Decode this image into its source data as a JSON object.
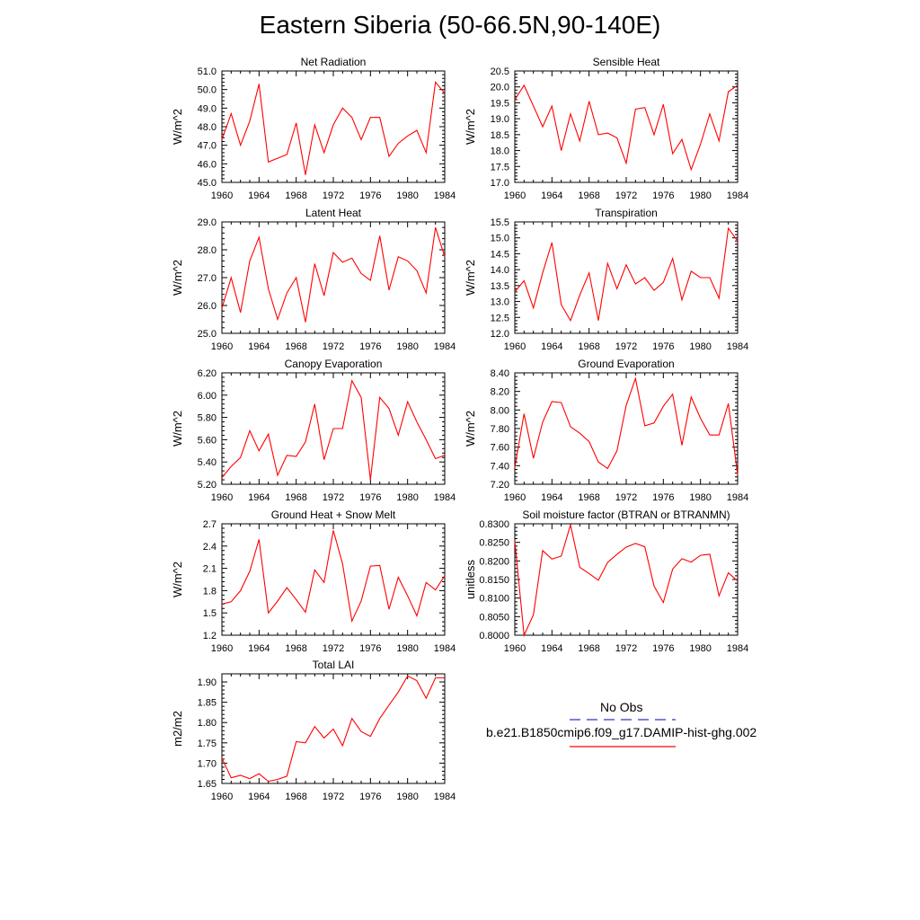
{
  "title": "Eastern Siberia (50-66.5N,90-140E)",
  "legend": {
    "entries": [
      {
        "label": "No Obs",
        "color": "#3333cc",
        "style": "dashed"
      },
      {
        "label": "b.e21.B1850cmip6.f09_g17.DAMIP-hist-ghg.002",
        "color": "#ff0000",
        "style": "solid"
      }
    ]
  },
  "chart_data": [
    {
      "type": "line",
      "title": "Net Radiation",
      "ylabel": "W/m^2",
      "xlim": [
        1960,
        1984
      ],
      "xticks": [
        "1960",
        "1964",
        "1968",
        "1972",
        "1976",
        "1980",
        "1984"
      ],
      "ylim": [
        45.0,
        51.0
      ],
      "yticks": [
        "45.0",
        "46.0",
        "47.0",
        "48.0",
        "49.0",
        "50.0",
        "51.0"
      ],
      "color": "#ff0000",
      "x": [
        1960,
        1961,
        1962,
        1963,
        1964,
        1965,
        1966,
        1967,
        1968,
        1969,
        1970,
        1971,
        1972,
        1973,
        1974,
        1975,
        1976,
        1977,
        1978,
        1979,
        1980,
        1981,
        1982,
        1983,
        1984
      ],
      "values": [
        47.3,
        48.7,
        47.0,
        48.3,
        50.3,
        46.1,
        46.3,
        46.5,
        48.2,
        45.4,
        48.1,
        46.6,
        48.1,
        49.0,
        48.5,
        47.3,
        48.5,
        48.5,
        46.4,
        47.1,
        47.5,
        47.8,
        46.6,
        50.4,
        49.8
      ]
    },
    {
      "type": "line",
      "title": "Sensible Heat",
      "ylabel": "W/m^2",
      "xlim": [
        1960,
        1984
      ],
      "xticks": [
        "1960",
        "1964",
        "1968",
        "1972",
        "1976",
        "1980",
        "1984"
      ],
      "ylim": [
        17.0,
        20.5
      ],
      "yticks": [
        "17.0",
        "17.5",
        "18.0",
        "18.5",
        "19.0",
        "19.5",
        "20.0",
        "20.5"
      ],
      "color": "#ff0000",
      "x": [
        1960,
        1961,
        1962,
        1963,
        1964,
        1965,
        1966,
        1967,
        1968,
        1969,
        1970,
        1971,
        1972,
        1973,
        1974,
        1975,
        1976,
        1977,
        1978,
        1979,
        1980,
        1981,
        1982,
        1983,
        1984
      ],
      "values": [
        19.6,
        20.05,
        19.4,
        18.75,
        19.4,
        18.0,
        19.15,
        18.3,
        19.55,
        18.5,
        18.55,
        18.4,
        17.6,
        19.3,
        19.35,
        18.5,
        19.45,
        17.9,
        18.35,
        17.4,
        18.2,
        19.15,
        18.3,
        19.85,
        20.05
      ]
    },
    {
      "type": "line",
      "title": "Latent Heat",
      "ylabel": "W/m^2",
      "xlim": [
        1960,
        1984
      ],
      "xticks": [
        "1960",
        "1964",
        "1968",
        "1972",
        "1976",
        "1980",
        "1984"
      ],
      "ylim": [
        25.0,
        29.0
      ],
      "yticks": [
        "25.0",
        "26.0",
        "27.0",
        "28.0",
        "29.0"
      ],
      "color": "#ff0000",
      "x": [
        1960,
        1961,
        1962,
        1963,
        1964,
        1965,
        1966,
        1967,
        1968,
        1969,
        1970,
        1971,
        1972,
        1973,
        1974,
        1975,
        1976,
        1977,
        1978,
        1979,
        1980,
        1981,
        1982,
        1983,
        1984
      ],
      "values": [
        25.9,
        27.0,
        25.75,
        27.6,
        28.45,
        26.6,
        25.5,
        26.45,
        27.0,
        25.4,
        27.5,
        26.35,
        27.9,
        27.55,
        27.7,
        27.15,
        26.9,
        28.5,
        26.55,
        27.75,
        27.6,
        27.25,
        26.45,
        28.8,
        27.75
      ]
    },
    {
      "type": "line",
      "title": "Transpiration",
      "ylabel": "W/m^2",
      "xlim": [
        1960,
        1984
      ],
      "xticks": [
        "1960",
        "1964",
        "1968",
        "1972",
        "1976",
        "1980",
        "1984"
      ],
      "ylim": [
        12.0,
        15.5
      ],
      "yticks": [
        "12.0",
        "12.5",
        "13.0",
        "13.5",
        "14.0",
        "14.5",
        "15.0",
        "15.5"
      ],
      "color": "#ff0000",
      "x": [
        1960,
        1961,
        1962,
        1963,
        1964,
        1965,
        1966,
        1967,
        1968,
        1969,
        1970,
        1971,
        1972,
        1973,
        1974,
        1975,
        1976,
        1977,
        1978,
        1979,
        1980,
        1981,
        1982,
        1983,
        1984
      ],
      "values": [
        13.3,
        13.65,
        12.8,
        13.9,
        14.85,
        12.9,
        12.4,
        13.2,
        13.9,
        12.4,
        14.2,
        13.4,
        14.15,
        13.55,
        13.75,
        13.35,
        13.6,
        14.35,
        13.05,
        13.95,
        13.75,
        13.75,
        13.1,
        15.3,
        14.9
      ]
    },
    {
      "type": "line",
      "title": "Canopy Evaporation",
      "ylabel": "W/m^2",
      "xlim": [
        1960,
        1984
      ],
      "xticks": [
        "1960",
        "1964",
        "1968",
        "1972",
        "1976",
        "1980",
        "1984"
      ],
      "ylim": [
        5.2,
        6.2
      ],
      "yticks": [
        "5.20",
        "5.40",
        "5.60",
        "5.80",
        "6.00",
        "6.20"
      ],
      "color": "#ff0000",
      "x": [
        1960,
        1961,
        1962,
        1963,
        1964,
        1965,
        1966,
        1967,
        1968,
        1969,
        1970,
        1971,
        1972,
        1973,
        1974,
        1975,
        1976,
        1977,
        1978,
        1979,
        1980,
        1981,
        1982,
        1983,
        1984
      ],
      "values": [
        5.26,
        5.36,
        5.44,
        5.68,
        5.5,
        5.65,
        5.28,
        5.46,
        5.45,
        5.58,
        5.92,
        5.42,
        5.7,
        5.7,
        6.13,
        5.98,
        5.24,
        5.98,
        5.88,
        5.64,
        5.94,
        5.76,
        5.6,
        5.43,
        5.46
      ]
    },
    {
      "type": "line",
      "title": "Ground Evaporation",
      "ylabel": "W/m^2",
      "xlim": [
        1960,
        1984
      ],
      "xticks": [
        "1960",
        "1964",
        "1968",
        "1972",
        "1976",
        "1980",
        "1984"
      ],
      "ylim": [
        7.2,
        8.4
      ],
      "yticks": [
        "7.20",
        "7.40",
        "7.60",
        "7.80",
        "8.00",
        "8.20",
        "8.40"
      ],
      "color": "#ff0000",
      "x": [
        1960,
        1961,
        1962,
        1963,
        1964,
        1965,
        1966,
        1967,
        1968,
        1969,
        1970,
        1971,
        1972,
        1973,
        1974,
        1975,
        1976,
        1977,
        1978,
        1979,
        1980,
        1981,
        1982,
        1983,
        1984
      ],
      "values": [
        7.38,
        7.96,
        7.48,
        7.87,
        8.09,
        8.08,
        7.82,
        7.75,
        7.66,
        7.44,
        7.37,
        7.56,
        8.05,
        8.34,
        7.83,
        7.86,
        8.04,
        8.17,
        7.62,
        8.14,
        7.91,
        7.73,
        7.73,
        8.07,
        7.3
      ]
    },
    {
      "type": "line",
      "title": "Ground Heat + Snow Melt",
      "ylabel": "W/m^2",
      "xlim": [
        1960,
        1984
      ],
      "xticks": [
        "1960",
        "1964",
        "1968",
        "1972",
        "1976",
        "1980",
        "1984"
      ],
      "ylim": [
        1.2,
        2.7
      ],
      "yticks": [
        "1.2",
        "1.5",
        "1.8",
        "2.1",
        "2.4",
        "2.7"
      ],
      "color": "#ff0000",
      "x": [
        1960,
        1961,
        1962,
        1963,
        1964,
        1965,
        1966,
        1967,
        1968,
        1969,
        1970,
        1971,
        1972,
        1973,
        1974,
        1975,
        1976,
        1977,
        1978,
        1979,
        1980,
        1981,
        1982,
        1983,
        1984
      ],
      "values": [
        1.62,
        1.65,
        1.8,
        2.06,
        2.49,
        1.5,
        1.66,
        1.84,
        1.68,
        1.51,
        2.08,
        1.91,
        2.61,
        2.16,
        1.39,
        1.66,
        2.13,
        2.14,
        1.55,
        1.98,
        1.73,
        1.46,
        1.91,
        1.81,
        2.0
      ]
    },
    {
      "type": "line",
      "title": "Soil moisture factor (BTRAN or BTRANMN)",
      "ylabel": "unitless",
      "xlim": [
        1960,
        1984
      ],
      "xticks": [
        "1960",
        "1964",
        "1968",
        "1972",
        "1976",
        "1980",
        "1984"
      ],
      "ylim": [
        0.8,
        0.83
      ],
      "yticks": [
        "0.8000",
        "0.8050",
        "0.8100",
        "0.8150",
        "0.8200",
        "0.8250",
        "0.8300"
      ],
      "color": "#ff0000",
      "x": [
        1960,
        1961,
        1962,
        1963,
        1964,
        1965,
        1966,
        1967,
        1968,
        1969,
        1970,
        1971,
        1972,
        1973,
        1974,
        1975,
        1976,
        1977,
        1978,
        1979,
        1980,
        1981,
        1982,
        1983,
        1984
      ],
      "values": [
        0.8253,
        0.8,
        0.8055,
        0.8228,
        0.8205,
        0.8213,
        0.8297,
        0.8183,
        0.8166,
        0.8148,
        0.8196,
        0.8218,
        0.8237,
        0.8247,
        0.8238,
        0.8132,
        0.8088,
        0.8178,
        0.8206,
        0.8197,
        0.8215,
        0.8218,
        0.8106,
        0.8168,
        0.8146
      ]
    },
    {
      "type": "line",
      "title": "Total LAI",
      "ylabel": "m2/m2",
      "xlim": [
        1960,
        1984
      ],
      "xticks": [
        "1960",
        "1964",
        "1968",
        "1972",
        "1976",
        "1980",
        "1984"
      ],
      "ylim": [
        1.65,
        1.92
      ],
      "yticks": [
        "1.65",
        "1.70",
        "1.75",
        "1.80",
        "1.85",
        "1.90"
      ],
      "color": "#ff0000",
      "x": [
        1960,
        1961,
        1962,
        1963,
        1964,
        1965,
        1966,
        1967,
        1968,
        1969,
        1970,
        1971,
        1972,
        1973,
        1974,
        1975,
        1976,
        1977,
        1978,
        1979,
        1980,
        1981,
        1982,
        1983,
        1984
      ],
      "values": [
        1.712,
        1.664,
        1.67,
        1.662,
        1.674,
        1.655,
        1.66,
        1.668,
        1.753,
        1.75,
        1.79,
        1.762,
        1.784,
        1.743,
        1.81,
        1.778,
        1.766,
        1.81,
        1.843,
        1.875,
        1.915,
        1.903,
        1.86,
        1.91,
        1.91
      ]
    }
  ]
}
